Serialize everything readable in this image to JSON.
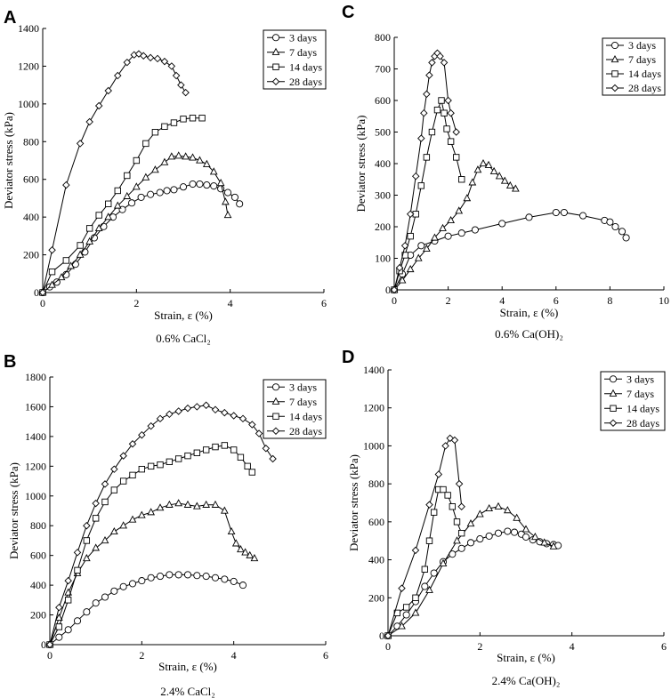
{
  "chart_data": [
    {
      "id": "A",
      "type": "line",
      "panel_label": "A",
      "caption": "0.6% CaCl₂",
      "xlabel": "Strain, ε (%)",
      "ylabel": "Deviator stress (kPa)",
      "xlim": [
        0,
        6
      ],
      "ylim": [
        0,
        1400
      ],
      "xticks": [
        "0",
        "2",
        "4",
        "6"
      ],
      "yticks": [
        "0",
        "200",
        "400",
        "600",
        "800",
        "1000",
        "1200",
        "1400"
      ],
      "series": [
        {
          "name": "3 days",
          "marker": "circle",
          "x": [
            0,
            0.15,
            0.3,
            0.5,
            0.7,
            0.9,
            1.1,
            1.3,
            1.5,
            1.7,
            1.9,
            2.1,
            2.3,
            2.5,
            2.65,
            2.8,
            3.0,
            3.2,
            3.35,
            3.5,
            3.65,
            3.8,
            3.95,
            4.1,
            4.2
          ],
          "y": [
            0,
            30,
            55,
            95,
            150,
            215,
            290,
            350,
            400,
            440,
            475,
            505,
            520,
            530,
            540,
            545,
            560,
            575,
            575,
            570,
            565,
            550,
            530,
            505,
            470
          ]
        },
        {
          "name": "7 days",
          "marker": "triangle",
          "x": [
            0,
            0.2,
            0.4,
            0.6,
            0.8,
            1.0,
            1.2,
            1.4,
            1.6,
            1.8,
            2.0,
            2.2,
            2.4,
            2.6,
            2.75,
            2.9,
            3.05,
            3.2,
            3.35,
            3.5,
            3.65,
            3.8,
            3.9,
            3.95
          ],
          "y": [
            0,
            40,
            80,
            140,
            200,
            270,
            340,
            400,
            460,
            510,
            560,
            610,
            650,
            690,
            720,
            725,
            720,
            715,
            700,
            680,
            640,
            580,
            480,
            410
          ]
        },
        {
          "name": "14 days",
          "marker": "square",
          "x": [
            0,
            0.2,
            0.5,
            0.8,
            1.0,
            1.2,
            1.4,
            1.6,
            1.8,
            2.0,
            2.2,
            2.4,
            2.6,
            2.8,
            3.0,
            3.2,
            3.4
          ],
          "y": [
            0,
            110,
            170,
            250,
            340,
            410,
            470,
            540,
            620,
            700,
            790,
            850,
            880,
            900,
            920,
            925,
            925
          ]
        },
        {
          "name": "28 days",
          "marker": "diamond",
          "x": [
            0,
            0.2,
            0.5,
            0.8,
            1.0,
            1.2,
            1.4,
            1.6,
            1.8,
            1.95,
            2.05,
            2.15,
            2.3,
            2.45,
            2.6,
            2.75,
            2.85,
            2.95,
            3.05
          ],
          "y": [
            0,
            225,
            570,
            790,
            905,
            990,
            1070,
            1150,
            1220,
            1260,
            1265,
            1255,
            1245,
            1240,
            1225,
            1200,
            1150,
            1100,
            1060
          ]
        }
      ]
    },
    {
      "id": "C",
      "type": "line",
      "panel_label": "C",
      "caption": "0.6% Ca(OH)₂",
      "xlabel": "Strain, ε (%)",
      "ylabel": "Deviator stress (kPa)",
      "xlim": [
        0,
        10
      ],
      "ylim": [
        0,
        800
      ],
      "xticks": [
        "0",
        "2",
        "4",
        "6",
        "8",
        "10"
      ],
      "yticks": [
        "0",
        "100",
        "200",
        "300",
        "400",
        "500",
        "600",
        "700",
        "800"
      ],
      "series": [
        {
          "name": "3 days",
          "marker": "circle",
          "x": [
            0,
            0.3,
            0.6,
            1.0,
            1.5,
            2.0,
            2.5,
            3.0,
            4.0,
            5.0,
            6.0,
            6.3,
            7.0,
            7.8,
            8.0,
            8.2,
            8.45,
            8.6
          ],
          "y": [
            0,
            50,
            110,
            140,
            155,
            170,
            180,
            190,
            210,
            230,
            245,
            245,
            235,
            220,
            215,
            200,
            185,
            165
          ]
        },
        {
          "name": "7 days",
          "marker": "triangle",
          "x": [
            0,
            0.3,
            0.6,
            0.9,
            1.2,
            1.5,
            1.8,
            2.1,
            2.4,
            2.7,
            2.9,
            3.1,
            3.3,
            3.5,
            3.7,
            3.9,
            4.1,
            4.3,
            4.5
          ],
          "y": [
            0,
            30,
            65,
            100,
            130,
            165,
            195,
            220,
            250,
            290,
            340,
            380,
            400,
            395,
            375,
            360,
            345,
            330,
            320
          ]
        },
        {
          "name": "14 days",
          "marker": "square",
          "x": [
            0,
            0.2,
            0.4,
            0.6,
            0.8,
            1.0,
            1.2,
            1.4,
            1.6,
            1.75,
            1.85,
            1.95,
            2.1,
            2.3,
            2.5
          ],
          "y": [
            0,
            60,
            110,
            170,
            240,
            330,
            420,
            500,
            570,
            600,
            560,
            510,
            470,
            420,
            350
          ]
        },
        {
          "name": "28 days",
          "marker": "diamond",
          "x": [
            0,
            0.2,
            0.4,
            0.6,
            0.8,
            1.0,
            1.1,
            1.2,
            1.3,
            1.4,
            1.5,
            1.6,
            1.7,
            1.85,
            2.0,
            2.1,
            2.3
          ],
          "y": [
            0,
            70,
            140,
            240,
            360,
            480,
            560,
            620,
            680,
            720,
            740,
            750,
            740,
            720,
            600,
            560,
            500
          ]
        }
      ]
    },
    {
      "id": "B",
      "type": "line",
      "panel_label": "B",
      "caption": "2.4% CaCl₂",
      "xlabel": "Strain, ε (%)",
      "ylabel": "Deviator stress (kPa)",
      "xlim": [
        0,
        6
      ],
      "ylim": [
        0,
        1800
      ],
      "xticks": [
        "0",
        "2",
        "4",
        "6"
      ],
      "yticks": [
        "0",
        "200",
        "400",
        "600",
        "800",
        "1000",
        "1200",
        "1400",
        "1600",
        "1800"
      ],
      "series": [
        {
          "name": "3 days",
          "marker": "circle",
          "x": [
            0,
            0.2,
            0.4,
            0.6,
            0.8,
            1.0,
            1.2,
            1.4,
            1.6,
            1.8,
            2.0,
            2.2,
            2.4,
            2.6,
            2.8,
            3.0,
            3.2,
            3.4,
            3.6,
            3.8,
            4.0,
            4.2
          ],
          "y": [
            0,
            50,
            100,
            160,
            220,
            280,
            320,
            360,
            390,
            410,
            430,
            450,
            460,
            470,
            470,
            470,
            465,
            460,
            450,
            440,
            425,
            400
          ]
        },
        {
          "name": "7 days",
          "marker": "triangle",
          "x": [
            0,
            0.2,
            0.4,
            0.6,
            0.8,
            1.0,
            1.2,
            1.4,
            1.6,
            1.8,
            2.0,
            2.2,
            2.4,
            2.6,
            2.8,
            3.0,
            3.2,
            3.4,
            3.6,
            3.8,
            3.95,
            4.05,
            4.15,
            4.25,
            4.35,
            4.45
          ],
          "y": [
            0,
            180,
            350,
            480,
            580,
            650,
            700,
            760,
            800,
            840,
            870,
            890,
            920,
            940,
            950,
            940,
            930,
            940,
            940,
            900,
            760,
            680,
            640,
            620,
            600,
            580
          ]
        },
        {
          "name": "14 days",
          "marker": "square",
          "x": [
            0,
            0.2,
            0.4,
            0.6,
            0.8,
            1.0,
            1.2,
            1.4,
            1.6,
            1.8,
            2.0,
            2.2,
            2.4,
            2.6,
            2.8,
            3.0,
            3.2,
            3.4,
            3.6,
            3.8,
            4.0,
            4.15,
            4.3,
            4.4
          ],
          "y": [
            0,
            120,
            300,
            500,
            700,
            850,
            960,
            1040,
            1100,
            1140,
            1180,
            1200,
            1210,
            1230,
            1250,
            1270,
            1290,
            1310,
            1330,
            1340,
            1310,
            1260,
            1200,
            1160
          ]
        },
        {
          "name": "28 days",
          "marker": "diamond",
          "x": [
            0,
            0.2,
            0.4,
            0.6,
            0.8,
            1.0,
            1.2,
            1.4,
            1.6,
            1.8,
            2.0,
            2.2,
            2.4,
            2.6,
            2.8,
            3.0,
            3.2,
            3.4,
            3.6,
            3.8,
            4.0,
            4.2,
            4.4,
            4.55,
            4.7,
            4.85
          ],
          "y": [
            0,
            250,
            430,
            620,
            800,
            950,
            1080,
            1180,
            1270,
            1350,
            1410,
            1470,
            1520,
            1550,
            1570,
            1590,
            1600,
            1610,
            1580,
            1560,
            1540,
            1520,
            1480,
            1420,
            1320,
            1250
          ]
        }
      ]
    },
    {
      "id": "D",
      "type": "line",
      "panel_label": "D",
      "caption": "2.4% Ca(OH)₂",
      "xlabel": "Strain, ε (%)",
      "ylabel": "Deviator stress (kPa)",
      "xlim": [
        0,
        6
      ],
      "ylim": [
        0,
        1400
      ],
      "xticks": [
        "0",
        "2",
        "4",
        "6"
      ],
      "yticks": [
        "0",
        "200",
        "400",
        "600",
        "800",
        "1000",
        "1200",
        "1400"
      ],
      "series": [
        {
          "name": "3 days",
          "marker": "circle",
          "x": [
            0,
            0.2,
            0.4,
            0.6,
            0.8,
            1.0,
            1.2,
            1.4,
            1.6,
            1.8,
            2.0,
            2.2,
            2.4,
            2.6,
            2.75,
            2.9,
            3.0,
            3.15,
            3.3,
            3.45,
            3.6,
            3.7
          ],
          "y": [
            0,
            50,
            110,
            180,
            260,
            330,
            390,
            430,
            460,
            490,
            510,
            525,
            540,
            550,
            545,
            535,
            520,
            505,
            495,
            485,
            480,
            475
          ]
        },
        {
          "name": "7 days",
          "marker": "triangle",
          "x": [
            0,
            0.3,
            0.6,
            0.9,
            1.2,
            1.5,
            1.8,
            2.0,
            2.2,
            2.4,
            2.6,
            2.8,
            3.0,
            3.2,
            3.4,
            3.6
          ],
          "y": [
            0,
            50,
            120,
            240,
            380,
            500,
            590,
            640,
            670,
            680,
            660,
            620,
            560,
            520,
            490,
            470
          ]
        },
        {
          "name": "14 days",
          "marker": "square",
          "x": [
            0,
            0.2,
            0.4,
            0.6,
            0.8,
            0.9,
            1.0,
            1.1,
            1.2,
            1.3,
            1.4,
            1.5,
            1.6
          ],
          "y": [
            0,
            120,
            150,
            200,
            350,
            500,
            650,
            770,
            770,
            740,
            680,
            600,
            540
          ]
        },
        {
          "name": "28 days",
          "marker": "diamond",
          "x": [
            0,
            0.3,
            0.6,
            0.9,
            1.1,
            1.25,
            1.35,
            1.45,
            1.55,
            1.6
          ],
          "y": [
            0,
            250,
            450,
            690,
            850,
            1000,
            1040,
            1030,
            800,
            680
          ]
        }
      ]
    }
  ]
}
